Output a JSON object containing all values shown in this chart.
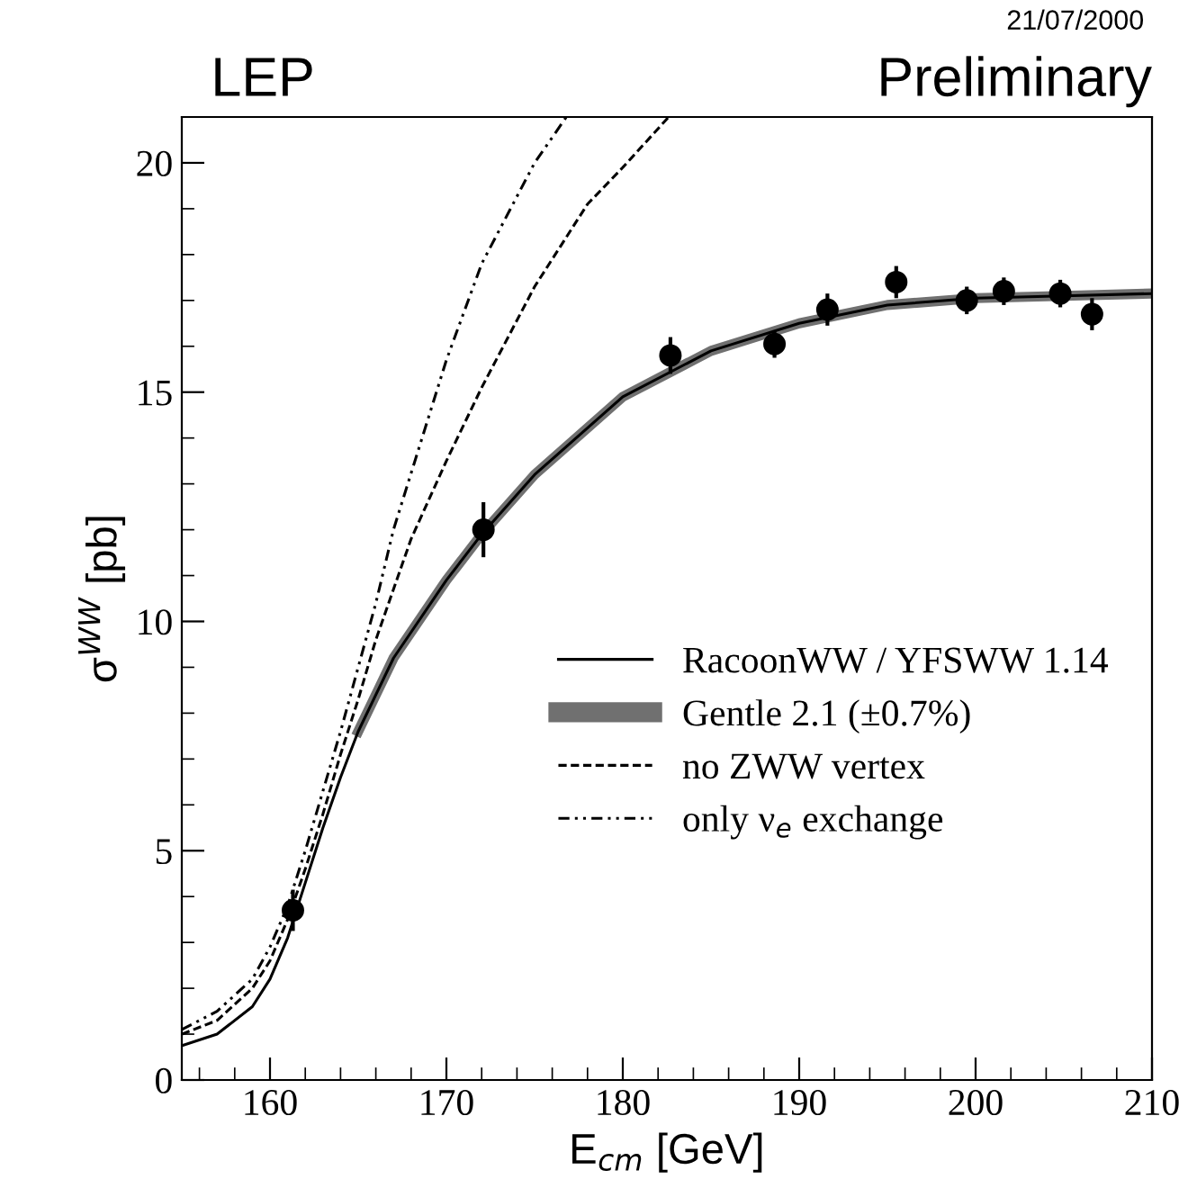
{
  "chart_data": {
    "type": "line",
    "title": "LEP",
    "xlabel": "E$_{cm}$ [GeV]",
    "ylabel": "σ$^{WW}$ [pb]",
    "annotations": [
      "Preliminary",
      "21/07/2000"
    ],
    "xlim": [
      155,
      210
    ],
    "ylim": [
      0,
      21
    ],
    "xticks": [
      160,
      170,
      180,
      190,
      200,
      210
    ],
    "yticks": [
      0,
      5,
      10,
      15,
      20
    ],
    "grid": false,
    "legend": "right",
    "series": [
      {
        "name": "RacoonWW / YFSWW 1.14",
        "color": "#000000",
        "line_style": "solid",
        "x": [
          155,
          157,
          159,
          160,
          161,
          162,
          163,
          164,
          165,
          167,
          170,
          172,
          175,
          180,
          185,
          190,
          195,
          200,
          205,
          210
        ],
        "values": [
          0.75,
          1.0,
          1.6,
          2.2,
          3.1,
          4.3,
          5.5,
          6.6,
          7.6,
          9.2,
          10.9,
          11.9,
          13.2,
          14.9,
          15.9,
          16.5,
          16.9,
          17.05,
          17.1,
          17.15
        ]
      },
      {
        "name": "Gentle 2.1 (±0.7%)",
        "color": "#707070",
        "x": [
          165,
          167,
          170,
          172,
          175,
          180,
          185,
          190,
          195,
          200,
          205,
          210
        ],
        "values": [
          7.6,
          9.2,
          10.9,
          11.9,
          13.2,
          14.9,
          15.9,
          16.5,
          16.9,
          17.05,
          17.1,
          17.15
        ]
      },
      {
        "name": "no ZWW vertex",
        "color": "#000000",
        "line_style": "dashed",
        "x": [
          155,
          157,
          159,
          160,
          161,
          162,
          163,
          164,
          165,
          166,
          168,
          170,
          172,
          175,
          178,
          180,
          182.6
        ],
        "values": [
          1.0,
          1.3,
          2.0,
          2.6,
          3.5,
          4.6,
          5.8,
          7.1,
          8.3,
          9.6,
          11.8,
          13.5,
          15.1,
          17.3,
          19.1,
          19.9,
          21.0
        ]
      },
      {
        "name": "only ν$_{e}$ exchange",
        "color": "#000000",
        "line_style": "dashdot",
        "x": [
          155,
          157,
          159,
          160,
          161,
          162,
          163,
          164,
          165,
          166,
          167,
          170,
          172,
          175,
          176.8
        ],
        "values": [
          1.1,
          1.5,
          2.2,
          2.9,
          3.8,
          5.0,
          6.3,
          7.6,
          9.0,
          10.4,
          12.0,
          15.7,
          17.8,
          20.0,
          21.0
        ]
      },
      {
        "type": "scatter",
        "color": "#000000",
        "marker": "circle",
        "x": [
          161.3,
          172.1,
          182.7,
          188.6,
          191.6,
          195.5,
          199.5,
          201.6,
          204.8,
          206.6
        ],
        "values": [
          3.7,
          12.0,
          15.8,
          16.05,
          16.8,
          17.4,
          17.0,
          17.2,
          17.15,
          16.7
        ],
        "errors": [
          0.45,
          0.6,
          0.4,
          0.3,
          0.35,
          0.35,
          0.3,
          0.3,
          0.3,
          0.35
        ]
      }
    ]
  }
}
